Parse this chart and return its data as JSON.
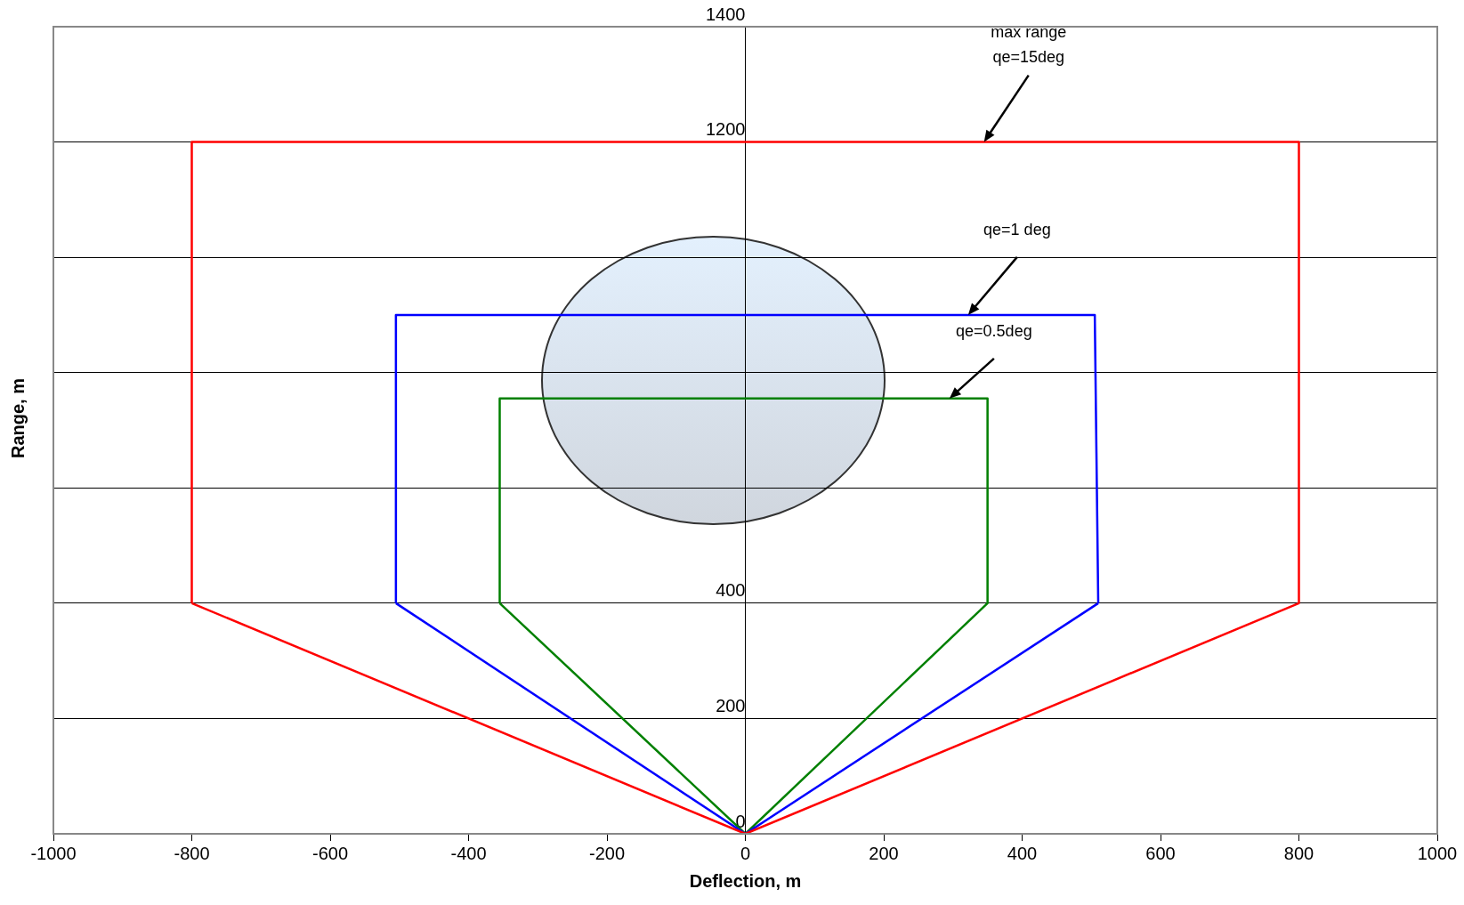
{
  "chart_data": {
    "type": "line",
    "xlabel": "Deflection, m",
    "ylabel": "Range, m",
    "xlim": [
      -1000,
      1000
    ],
    "xticks": [
      -1000,
      -800,
      -600,
      -400,
      -200,
      0,
      200,
      400,
      600,
      800,
      1000
    ],
    "ylim": [
      0,
      1400
    ],
    "yticks": [
      0,
      200,
      400,
      {
        "value": 600,
        "label": null
      },
      {
        "value": 800,
        "label": null
      },
      {
        "value": 1000,
        "label": null
      },
      1200,
      1400
    ],
    "grid": "y",
    "legend": false,
    "marker": "none",
    "line_style": "solid",
    "series": [
      {
        "color": "#ff0000",
        "x": [
          -800,
          0,
          800
        ],
        "values": [
          400,
          0,
          400
        ]
      },
      {
        "color": "#ff0000",
        "x": [
          -800,
          -800,
          800,
          800
        ],
        "values": [
          400,
          1200,
          1200,
          400
        ]
      },
      {
        "color": "#0000ff",
        "x": [
          -505,
          0,
          510
        ],
        "values": [
          400,
          0,
          400
        ]
      },
      {
        "color": "#0000ff",
        "x": [
          -505,
          -505,
          505,
          510
        ],
        "values": [
          400,
          900,
          900,
          400
        ]
      },
      {
        "color": "#008000",
        "x": [
          -355,
          0,
          350
        ],
        "values": [
          400,
          0,
          400
        ]
      },
      {
        "color": "#008000",
        "x": [
          -355,
          -355,
          350,
          350
        ],
        "values": [
          400,
          755,
          755,
          400
        ]
      }
    ],
    "annotations": [
      "max range\nqe=15deg",
      "qe=1 deg",
      "qe=0.5deg"
    ]
  }
}
